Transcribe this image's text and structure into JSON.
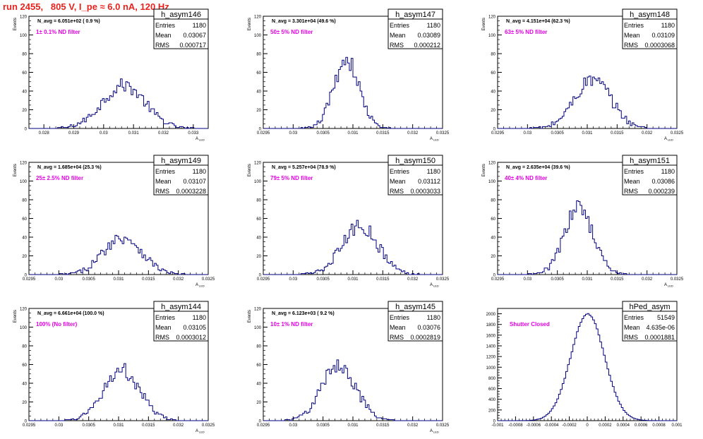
{
  "page_title": "run 2455,   805 V, I_pe ≈ 6.0 nA, 120 Hz",
  "colors": {
    "title": "#e8231e",
    "annotation": "#e600e6",
    "histogram": "#000080",
    "axes": "#000000"
  },
  "chart_data": [
    {
      "type": "histogram",
      "name": "h_asym146",
      "stats": {
        "entries": "1180",
        "mean": "0.03067",
        "rms": "0.000717"
      },
      "stat_labels": [
        "Entries",
        "Mean",
        "RMS"
      ],
      "navg_text": "N_avg = 6.051e+02 ( 0.9 %)",
      "filter_text": "1± 0.1% ND filter",
      "xlim": [
        0.0275,
        0.0335
      ],
      "ylim": [
        0,
        120
      ],
      "xticks": [
        "0.028",
        "0.029",
        "0.03",
        "0.031",
        "0.032",
        "0.033"
      ],
      "xtick_values": [
        0.028,
        0.029,
        0.03,
        0.031,
        0.032,
        0.033
      ],
      "yticks": [
        "0",
        "20",
        "40",
        "60",
        "80",
        "100",
        "120"
      ],
      "xlabel": "A_LED",
      "ylabel": "Events",
      "nbins": 100,
      "mean": 0.03067,
      "sigma": 0.000717,
      "peak": 46
    },
    {
      "type": "histogram",
      "name": "h_asym147",
      "stats": {
        "entries": "1180",
        "mean": "0.03089",
        "rms": "0.000212"
      },
      "stat_labels": [
        "Entries",
        "Mean",
        "RMS"
      ],
      "navg_text": "N_avg = 3.301e+04 (49.6 %)",
      "filter_text": "50± 5% ND filter",
      "xlim": [
        0.0295,
        0.0325
      ],
      "ylim": [
        0,
        120
      ],
      "xticks": [
        "0.0295",
        "0.03",
        "0.0305",
        "0.031",
        "0.0315",
        "0.032",
        "0.0325"
      ],
      "xtick_values": [
        0.0295,
        0.03,
        0.0305,
        0.031,
        0.0315,
        0.032,
        0.0325
      ],
      "yticks": [
        "0",
        "20",
        "40",
        "60",
        "80",
        "100",
        "120"
      ],
      "xlabel": "A_LED",
      "ylabel": "Events",
      "nbins": 100,
      "mean": 0.03089,
      "sigma": 0.000212,
      "peak": 74
    },
    {
      "type": "histogram",
      "name": "h_asym148",
      "stats": {
        "entries": "1180",
        "mean": "0.03109",
        "rms": "0.0003068"
      },
      "stat_labels": [
        "Entries",
        "Mean",
        "RMS"
      ],
      "navg_text": "N_avg = 4.151e+04 (62.3 %)",
      "filter_text": "63± 5% ND filter",
      "xlim": [
        0.0295,
        0.0325
      ],
      "ylim": [
        0,
        120
      ],
      "xticks": [
        "0.0295",
        "0.03",
        "0.0305",
        "0.031",
        "0.0315",
        "0.032",
        "0.0325"
      ],
      "xtick_values": [
        0.0295,
        0.03,
        0.0305,
        0.031,
        0.0315,
        0.032,
        0.0325
      ],
      "yticks": [
        "0",
        "20",
        "40",
        "60",
        "80",
        "100",
        "120"
      ],
      "xlabel": "A_LED",
      "ylabel": "Events",
      "nbins": 100,
      "mean": 0.03109,
      "sigma": 0.000307,
      "peak": 52
    },
    {
      "type": "histogram",
      "name": "h_asym149",
      "stats": {
        "entries": "1180",
        "mean": "0.03107",
        "rms": "0.0003228"
      },
      "stat_labels": [
        "Entries",
        "Mean",
        "RMS"
      ],
      "navg_text": "N_avg = 1.685e+04 (25.3 %)",
      "filter_text": "25± 2.5% ND filter",
      "xlim": [
        0.0295,
        0.0325
      ],
      "ylim": [
        0,
        120
      ],
      "xticks": [
        "0.0295",
        "0.03",
        "0.0305",
        "0.031",
        "0.0315",
        "0.032",
        "0.0325"
      ],
      "xtick_values": [
        0.0295,
        0.03,
        0.0305,
        0.031,
        0.0315,
        0.032,
        0.0325
      ],
      "yticks": [
        "0",
        "20",
        "40",
        "60",
        "80",
        "100",
        "120"
      ],
      "xlabel": "A_LED",
      "ylabel": "Events",
      "nbins": 100,
      "mean": 0.03107,
      "sigma": 0.000323,
      "peak": 40
    },
    {
      "type": "histogram",
      "name": "h_asym150",
      "stats": {
        "entries": "1180",
        "mean": "0.03112",
        "rms": "0.0003033"
      },
      "stat_labels": [
        "Entries",
        "Mean",
        "RMS"
      ],
      "navg_text": "N_avg = 5.257e+04 (78.9 %)",
      "filter_text": "79± 5% ND filter",
      "xlim": [
        0.0295,
        0.0325
      ],
      "ylim": [
        0,
        120
      ],
      "xticks": [
        "0.0295",
        "0.03",
        "0.0305",
        "0.031",
        "0.0315",
        "0.032",
        "0.0325"
      ],
      "xtick_values": [
        0.0295,
        0.03,
        0.0305,
        0.031,
        0.0315,
        0.032,
        0.0325
      ],
      "yticks": [
        "0",
        "20",
        "40",
        "60",
        "80",
        "100",
        "120"
      ],
      "xlabel": "A_LED",
      "ylabel": "Events",
      "nbins": 100,
      "mean": 0.03112,
      "sigma": 0.000303,
      "peak": 52
    },
    {
      "type": "histogram",
      "name": "h_asym151",
      "stats": {
        "entries": "1180",
        "mean": "0.03086",
        "rms": "0.000239"
      },
      "stat_labels": [
        "Entries",
        "Mean",
        "RMS"
      ],
      "navg_text": "N_avg = 2.635e+04 (39.6 %)",
      "filter_text": "40± 4% ND filter",
      "xlim": [
        0.0295,
        0.0325
      ],
      "ylim": [
        0,
        120
      ],
      "xticks": [
        "0.0295",
        "0.03",
        "0.0305",
        "0.031",
        "0.0315",
        "0.032",
        "0.0325"
      ],
      "xtick_values": [
        0.0295,
        0.03,
        0.0305,
        0.031,
        0.0315,
        0.032,
        0.0325
      ],
      "yticks": [
        "0",
        "20",
        "40",
        "60",
        "80",
        "100",
        "120"
      ],
      "xlabel": "A_LED",
      "ylabel": "Events",
      "nbins": 100,
      "mean": 0.03086,
      "sigma": 0.000239,
      "peak": 72
    },
    {
      "type": "histogram",
      "name": "h_asym144",
      "stats": {
        "entries": "1180",
        "mean": "0.03105",
        "rms": "0.0003012"
      },
      "stat_labels": [
        "Entries",
        "Mean",
        "RMS"
      ],
      "navg_text": "N_avg = 6.661e+04 (100.0 %)",
      "filter_text": "100% (No filter)",
      "xlim": [
        0.0295,
        0.0325
      ],
      "ylim": [
        0,
        120
      ],
      "xticks": [
        "0.0295",
        "0.03",
        "0.0305",
        "0.031",
        "0.0315",
        "0.032",
        "0.0325"
      ],
      "xtick_values": [
        0.0295,
        0.03,
        0.0305,
        0.031,
        0.0315,
        0.032,
        0.0325
      ],
      "yticks": [
        "0",
        "20",
        "40",
        "60",
        "80",
        "100",
        "120"
      ],
      "xlabel": "A_LED",
      "ylabel": "Events",
      "nbins": 100,
      "mean": 0.03105,
      "sigma": 0.000301,
      "peak": 54
    },
    {
      "type": "histogram",
      "name": "h_asym145",
      "stats": {
        "entries": "1180",
        "mean": "0.03076",
        "rms": "0.0002819"
      },
      "stat_labels": [
        "Entries",
        "Mean",
        "RMS"
      ],
      "navg_text": "N_avg = 6.123e+03 ( 9.2 %)",
      "filter_text": "10± 1% ND filter",
      "xlim": [
        0.0295,
        0.0325
      ],
      "ylim": [
        0,
        120
      ],
      "xticks": [
        "0.0295",
        "0.03",
        "0.0305",
        "0.031",
        "0.0315",
        "0.032",
        "0.0325"
      ],
      "xtick_values": [
        0.0295,
        0.03,
        0.0305,
        0.031,
        0.0315,
        0.032,
        0.0325
      ],
      "yticks": [
        "0",
        "20",
        "40",
        "60",
        "80",
        "100",
        "120"
      ],
      "xlabel": "A_LED",
      "ylabel": "Events",
      "nbins": 100,
      "mean": 0.03076,
      "sigma": 0.000282,
      "peak": 60
    },
    {
      "type": "histogram",
      "name": "hPed_asym",
      "stats": {
        "entries": "51549",
        "mean": "4.635e-06",
        "rms": "0.0001881"
      },
      "stat_labels": [
        "Entries",
        "Mean",
        "RMS"
      ],
      "navg_text": "",
      "filter_text": "Shutter Closed",
      "xlim": [
        -0.001,
        0.001
      ],
      "ylim": [
        0,
        2100
      ],
      "xticks": [
        "-0.001",
        "-0.0008",
        "-0.0006",
        "-0.0004",
        "-0.0002",
        "0",
        "0.0002",
        "0.0004",
        "0.0006",
        "0.0008",
        "0.001"
      ],
      "xtick_values": [
        -0.001,
        -0.0008,
        -0.0006,
        -0.0004,
        -0.0002,
        0,
        0.0002,
        0.0004,
        0.0006,
        0.0008,
        0.001
      ],
      "yticks": [
        "0",
        "200",
        "400",
        "600",
        "800",
        "1000",
        "1200",
        "1400",
        "1600",
        "1800",
        "2000"
      ],
      "xlabel": "",
      "ylabel": "",
      "nbins": 100,
      "mean": 4.6e-06,
      "sigma": 0.000188,
      "peak": 2000
    }
  ]
}
